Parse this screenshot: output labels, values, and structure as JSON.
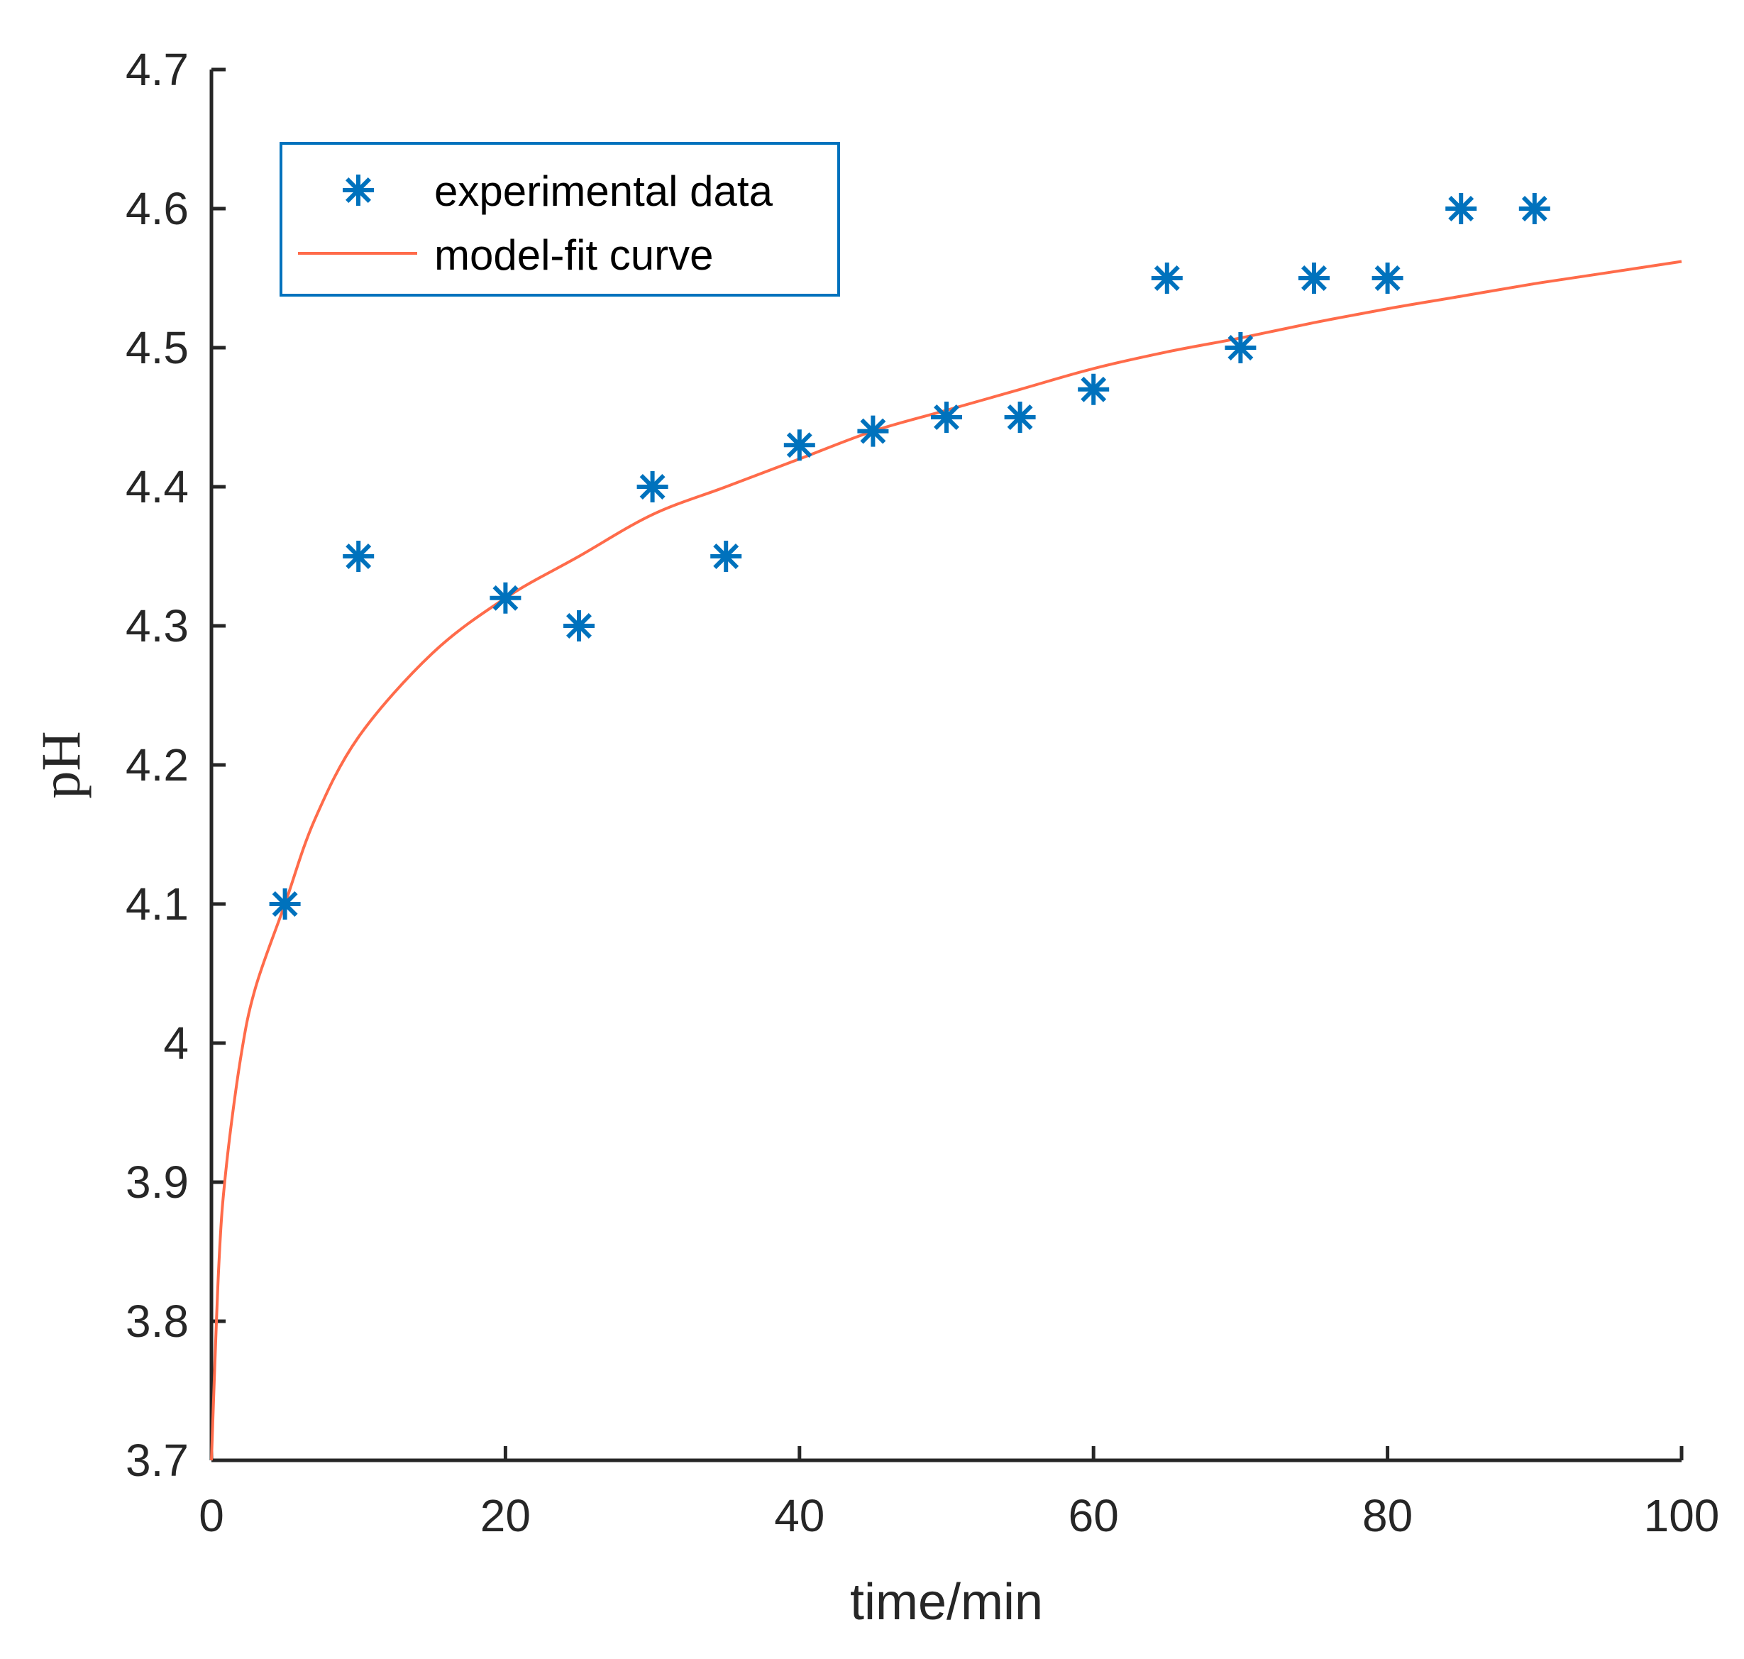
{
  "chart_data": {
    "type": "scatter",
    "title": "",
    "xlabel": "time/min",
    "ylabel": "pH",
    "xlim": [
      0,
      100
    ],
    "ylim": [
      3.7,
      4.7
    ],
    "x_ticks": [
      0,
      20,
      40,
      60,
      80,
      100
    ],
    "x_tick_labels": [
      "0",
      "20",
      "40",
      "60",
      "80",
      "100"
    ],
    "y_ticks": [
      3.7,
      3.8,
      3.9,
      4.0,
      4.1,
      4.2,
      4.3,
      4.4,
      4.5,
      4.6,
      4.7
    ],
    "y_tick_labels": [
      "3.7",
      "3.8",
      "3.9",
      "4",
      "4.1",
      "4.2",
      "4.3",
      "4.4",
      "4.5",
      "4.6",
      "4.7"
    ],
    "grid": false,
    "legend_position": "top-left",
    "series": [
      {
        "name": "experimental data",
        "kind": "scatter",
        "marker": "asterisk",
        "color": "#0072BD",
        "x": [
          5,
          10,
          20,
          25,
          30,
          35,
          40,
          45,
          50,
          55,
          60,
          65,
          70,
          75,
          80,
          85,
          90
        ],
        "y": [
          4.1,
          4.35,
          4.32,
          4.3,
          4.4,
          4.35,
          4.43,
          4.44,
          4.45,
          4.45,
          4.47,
          4.55,
          4.5,
          4.55,
          4.55,
          4.6,
          4.6
        ]
      },
      {
        "name": "model-fit curve",
        "kind": "line",
        "color": "#FF6B4A",
        "x": [
          0,
          0.5,
          1,
          2,
          3,
          5,
          7,
          10,
          15,
          20,
          25,
          30,
          35,
          40,
          45,
          50,
          55,
          60,
          65,
          70,
          75,
          80,
          85,
          90,
          95,
          100
        ],
        "y": [
          3.7,
          3.84,
          3.91,
          3.99,
          4.04,
          4.1,
          4.16,
          4.22,
          4.28,
          4.32,
          4.35,
          4.38,
          4.4,
          4.42,
          4.44,
          4.455,
          4.47,
          4.485,
          4.497,
          4.507,
          4.518,
          4.528,
          4.537,
          4.546,
          4.554,
          4.562
        ]
      }
    ]
  }
}
